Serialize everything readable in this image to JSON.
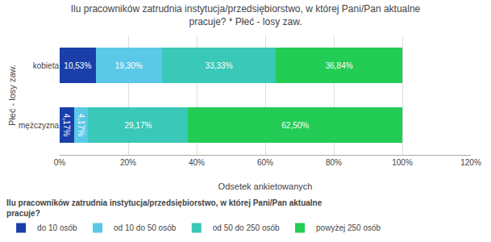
{
  "chart_data": {
    "type": "bar",
    "orientation": "horizontal",
    "stacked": true,
    "title": "Ilu pracowników zatrudnia instytucja/przedsiębiorstwo, w której Pani/Pan aktualne\npracuje? * Płeć - losy zaw.",
    "xlabel": "Odsetek ankietowanych",
    "ylabel": "Płeć - losy zaw.",
    "categories": [
      "mężczyzna",
      "kobieta"
    ],
    "series": [
      {
        "name": "do 10 osób",
        "color": "#1a3faa",
        "values": [
          4.17,
          10.53
        ],
        "value_labels": [
          "4,17%",
          "10,53%"
        ]
      },
      {
        "name": "od 10 do 50 osób",
        "color": "#5bc8e8",
        "values": [
          4.17,
          19.3
        ],
        "value_labels": [
          "4,17%",
          "19,30%"
        ]
      },
      {
        "name": "od 50 do 250 osób",
        "color": "#3ac8b8",
        "values": [
          29.17,
          33.33
        ],
        "value_labels": [
          "29,17%",
          "33,33%"
        ]
      },
      {
        "name": "powyżej 250 osób",
        "color": "#22cc55",
        "values": [
          62.5,
          36.84
        ],
        "value_labels": [
          "62,50%",
          "36,84%"
        ]
      }
    ],
    "data_labels": true,
    "xlim": [
      0,
      120
    ],
    "xticks": [
      {
        "value": 0,
        "label": "0%"
      },
      {
        "value": 20,
        "label": "20%"
      },
      {
        "value": 40,
        "label": "40%"
      },
      {
        "value": 60,
        "label": "60%"
      },
      {
        "value": 80,
        "label": "80%"
      },
      {
        "value": 100,
        "label": "100%"
      },
      {
        "value": 120,
        "label": "120%"
      }
    ],
    "grid": true,
    "legend": "bottom",
    "legend_title": "Ilu pracowników zatrudnia instytucja/przedsiębiorstwo, w której Pani/Pan aktualne\npracuje?"
  }
}
